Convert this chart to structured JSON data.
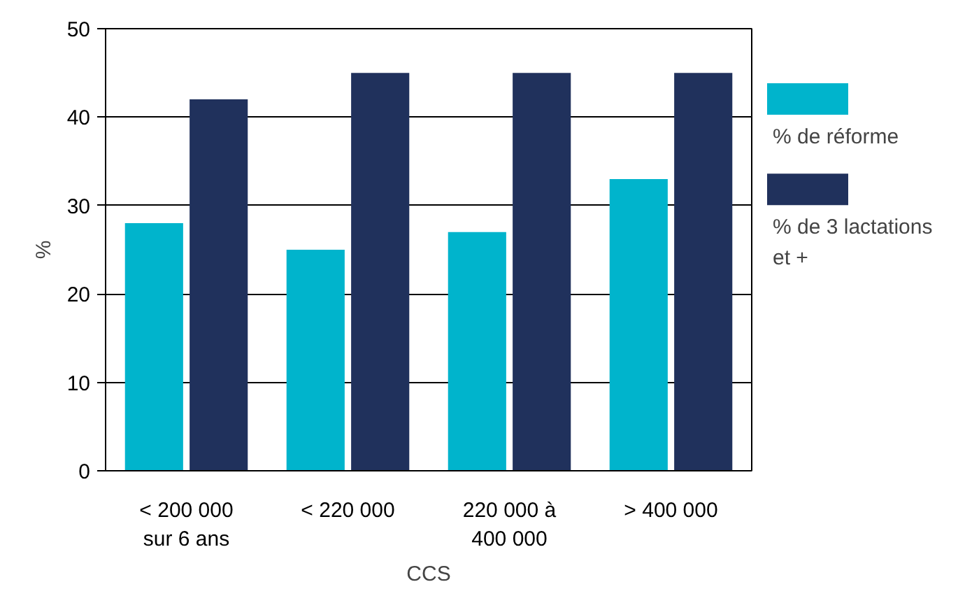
{
  "chart_data": {
    "type": "bar",
    "xlabel": "CCS",
    "ylabel": "%",
    "categories": [
      "< 200 000 sur 6 ans",
      "< 220 000",
      "220 000 à 400 000",
      "> 400 000"
    ],
    "series": [
      {
        "name": "% de réforme",
        "color": "#00b4cc",
        "values": [
          28,
          25,
          27,
          33
        ]
      },
      {
        "name": "% de 3 lactations et +",
        "color": "#20315c",
        "values": [
          42,
          45,
          45,
          45
        ]
      }
    ],
    "ylim": [
      0,
      50
    ],
    "yticks": [
      0,
      10,
      20,
      30,
      40,
      50
    ],
    "grid": "y",
    "legend": "right"
  }
}
